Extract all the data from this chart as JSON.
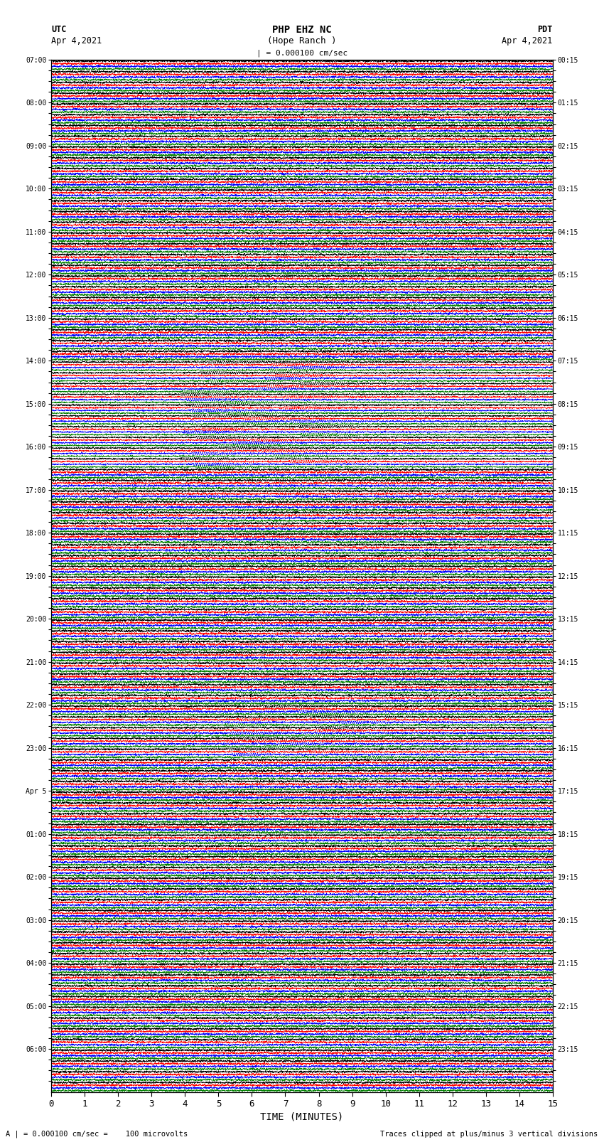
{
  "title_line1": "PHP EHZ NC",
  "title_line2": "(Hope Ranch )",
  "scale_label": "| = 0.000100 cm/sec",
  "utc_label": "UTC",
  "utc_date": "Apr 4,2021",
  "pdt_label": "PDT",
  "pdt_date": "Apr 4,2021",
  "xlabel": "TIME (MINUTES)",
  "bottom_note": "A | = 0.000100 cm/sec =    100 microvolts",
  "bottom_note2": "Traces clipped at plus/minus 3 vertical divisions",
  "xlim": [
    0,
    15
  ],
  "xticks": [
    0,
    1,
    2,
    3,
    4,
    5,
    6,
    7,
    8,
    9,
    10,
    11,
    12,
    13,
    14,
    15
  ],
  "colors": [
    "black",
    "red",
    "blue",
    "green"
  ],
  "bg_color": "white",
  "plot_bg": "white",
  "n_rows": 96,
  "left_times_utc": [
    "07:00",
    "",
    "",
    "",
    "08:00",
    "",
    "",
    "",
    "09:00",
    "",
    "",
    "",
    "10:00",
    "",
    "",
    "",
    "11:00",
    "",
    "",
    "",
    "12:00",
    "",
    "",
    "",
    "13:00",
    "",
    "",
    "",
    "14:00",
    "",
    "",
    "",
    "15:00",
    "",
    "",
    "",
    "16:00",
    "",
    "",
    "",
    "17:00",
    "",
    "",
    "",
    "18:00",
    "",
    "",
    "",
    "19:00",
    "",
    "",
    "",
    "20:00",
    "",
    "",
    "",
    "21:00",
    "",
    "",
    "",
    "22:00",
    "",
    "",
    "",
    "23:00",
    "",
    "",
    "",
    "Apr 5",
    "",
    "",
    "",
    "01:00",
    "",
    "",
    "",
    "02:00",
    "",
    "",
    "",
    "03:00",
    "",
    "",
    "",
    "04:00",
    "",
    "",
    "",
    "05:00",
    "",
    "",
    "",
    "06:00",
    "",
    "",
    ""
  ],
  "right_times_pdt": [
    "00:15",
    "",
    "",
    "",
    "01:15",
    "",
    "",
    "",
    "02:15",
    "",
    "",
    "",
    "03:15",
    "",
    "",
    "",
    "04:15",
    "",
    "",
    "",
    "05:15",
    "",
    "",
    "",
    "06:15",
    "",
    "",
    "",
    "07:15",
    "",
    "",
    "",
    "08:15",
    "",
    "",
    "",
    "09:15",
    "",
    "",
    "",
    "10:15",
    "",
    "",
    "",
    "11:15",
    "",
    "",
    "",
    "12:15",
    "",
    "",
    "",
    "13:15",
    "",
    "",
    "",
    "14:15",
    "",
    "",
    "",
    "15:15",
    "",
    "",
    "",
    "16:15",
    "",
    "",
    "",
    "17:15",
    "",
    "",
    "",
    "18:15",
    "",
    "",
    "",
    "19:15",
    "",
    "",
    "",
    "20:15",
    "",
    "",
    "",
    "21:15",
    "",
    "",
    "",
    "22:15",
    "",
    "",
    "",
    "23:15",
    "",
    "",
    ""
  ]
}
